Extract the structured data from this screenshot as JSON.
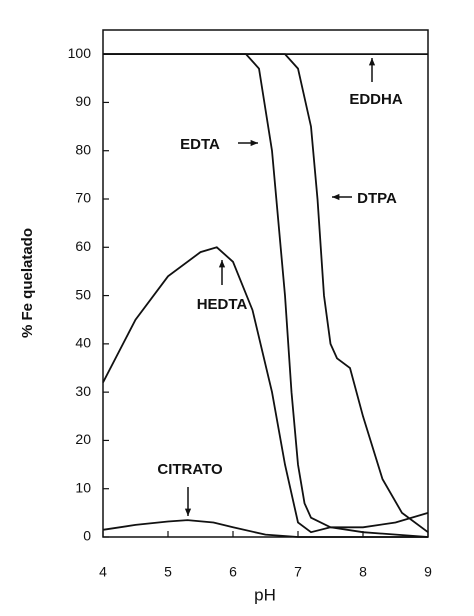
{
  "chart_data": {
    "type": "line",
    "xlabel": "pH",
    "ylabel": "% Fe quelatado",
    "xlim": [
      4,
      9
    ],
    "ylim": [
      0,
      105
    ],
    "xticks": [
      4,
      5,
      6,
      7,
      8,
      9
    ],
    "yticks": [
      0,
      10,
      20,
      30,
      40,
      50,
      60,
      70,
      80,
      90,
      100
    ],
    "series": [
      {
        "name": "EDDHA",
        "color": "#111111",
        "x": [
          4,
          9
        ],
        "values": [
          100,
          100
        ]
      },
      {
        "name": "EDTA",
        "color": "#111111",
        "x": [
          4,
          6.2,
          6.4,
          6.6,
          6.8,
          6.9,
          7.0,
          7.1,
          7.2,
          7.5,
          8,
          9
        ],
        "values": [
          100,
          100,
          97,
          80,
          50,
          30,
          15,
          7,
          4,
          2,
          1,
          0
        ]
      },
      {
        "name": "DTPA",
        "color": "#111111",
        "x": [
          4,
          6.8,
          7.0,
          7.2,
          7.3,
          7.4,
          7.5,
          7.6,
          7.8,
          8.0,
          8.3,
          8.6,
          9
        ],
        "values": [
          100,
          100,
          97,
          85,
          70,
          50,
          40,
          37,
          35,
          25,
          12,
          5,
          1
        ]
      },
      {
        "name": "HEDTA",
        "color": "#111111",
        "x": [
          4,
          4.5,
          5,
          5.5,
          5.75,
          6,
          6.3,
          6.6,
          6.8,
          7.0,
          7.2,
          7.5,
          8,
          8.5,
          9
        ],
        "values": [
          32,
          45,
          54,
          59,
          60,
          57,
          47,
          30,
          15,
          3,
          1,
          2,
          2,
          3,
          5
        ]
      },
      {
        "name": "CITRATO",
        "color": "#111111",
        "x": [
          4,
          4.5,
          5,
          5.3,
          5.7,
          6,
          6.5,
          7,
          9
        ],
        "values": [
          1.5,
          2.5,
          3.2,
          3.5,
          3,
          2,
          0.5,
          0,
          0
        ]
      }
    ]
  }
}
